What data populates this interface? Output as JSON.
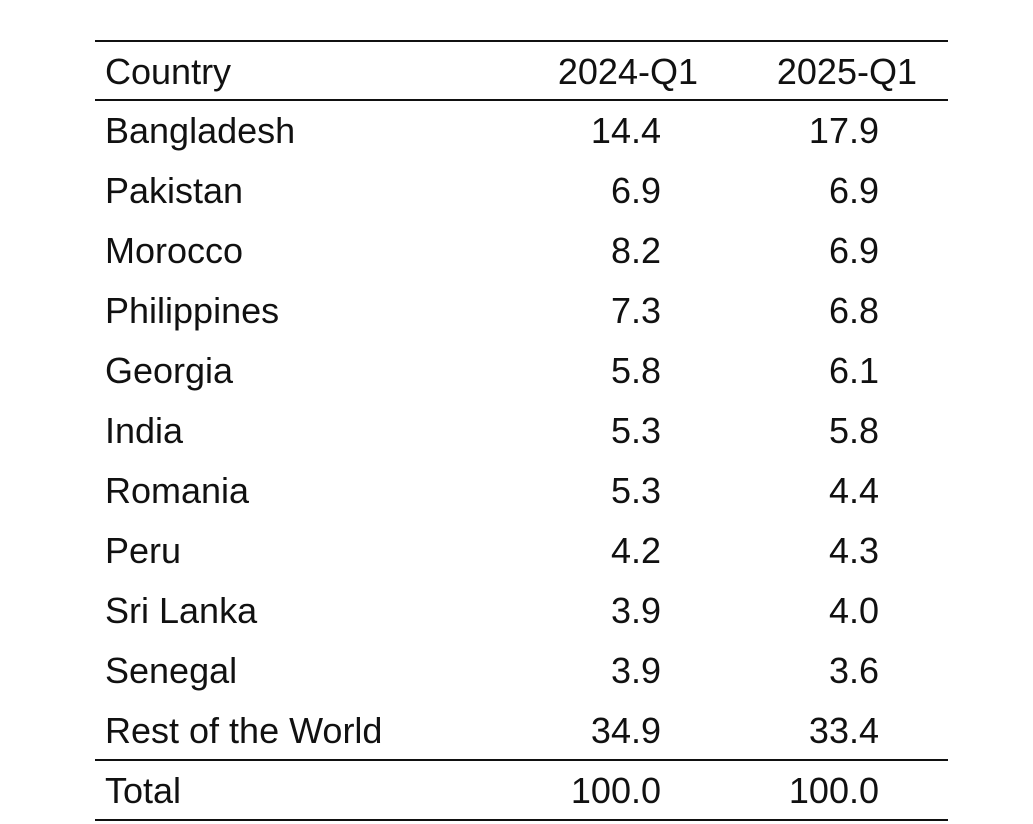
{
  "chart_data": {
    "type": "table",
    "columns": [
      "Country",
      "2024-Q1",
      "2025-Q1"
    ],
    "rows": [
      {
        "country": "Bangladesh",
        "v2024": "14.4",
        "v2025": "17.9"
      },
      {
        "country": "Pakistan",
        "v2024": "6.9",
        "v2025": "6.9"
      },
      {
        "country": "Morocco",
        "v2024": "8.2",
        "v2025": "6.9"
      },
      {
        "country": "Philippines",
        "v2024": "7.3",
        "v2025": "6.8"
      },
      {
        "country": "Georgia",
        "v2024": "5.8",
        "v2025": "6.1"
      },
      {
        "country": "India",
        "v2024": "5.3",
        "v2025": "5.8"
      },
      {
        "country": "Romania",
        "v2024": "5.3",
        "v2025": "4.4"
      },
      {
        "country": "Peru",
        "v2024": "4.2",
        "v2025": "4.3"
      },
      {
        "country": "Sri Lanka",
        "v2024": "3.9",
        "v2025": "4.0"
      },
      {
        "country": "Senegal",
        "v2024": "3.9",
        "v2025": "3.6"
      },
      {
        "country": "Rest of the World",
        "v2024": "34.9",
        "v2025": "33.4"
      }
    ],
    "total": {
      "country": "Total",
      "v2024": "100.0",
      "v2025": "100.0"
    }
  }
}
